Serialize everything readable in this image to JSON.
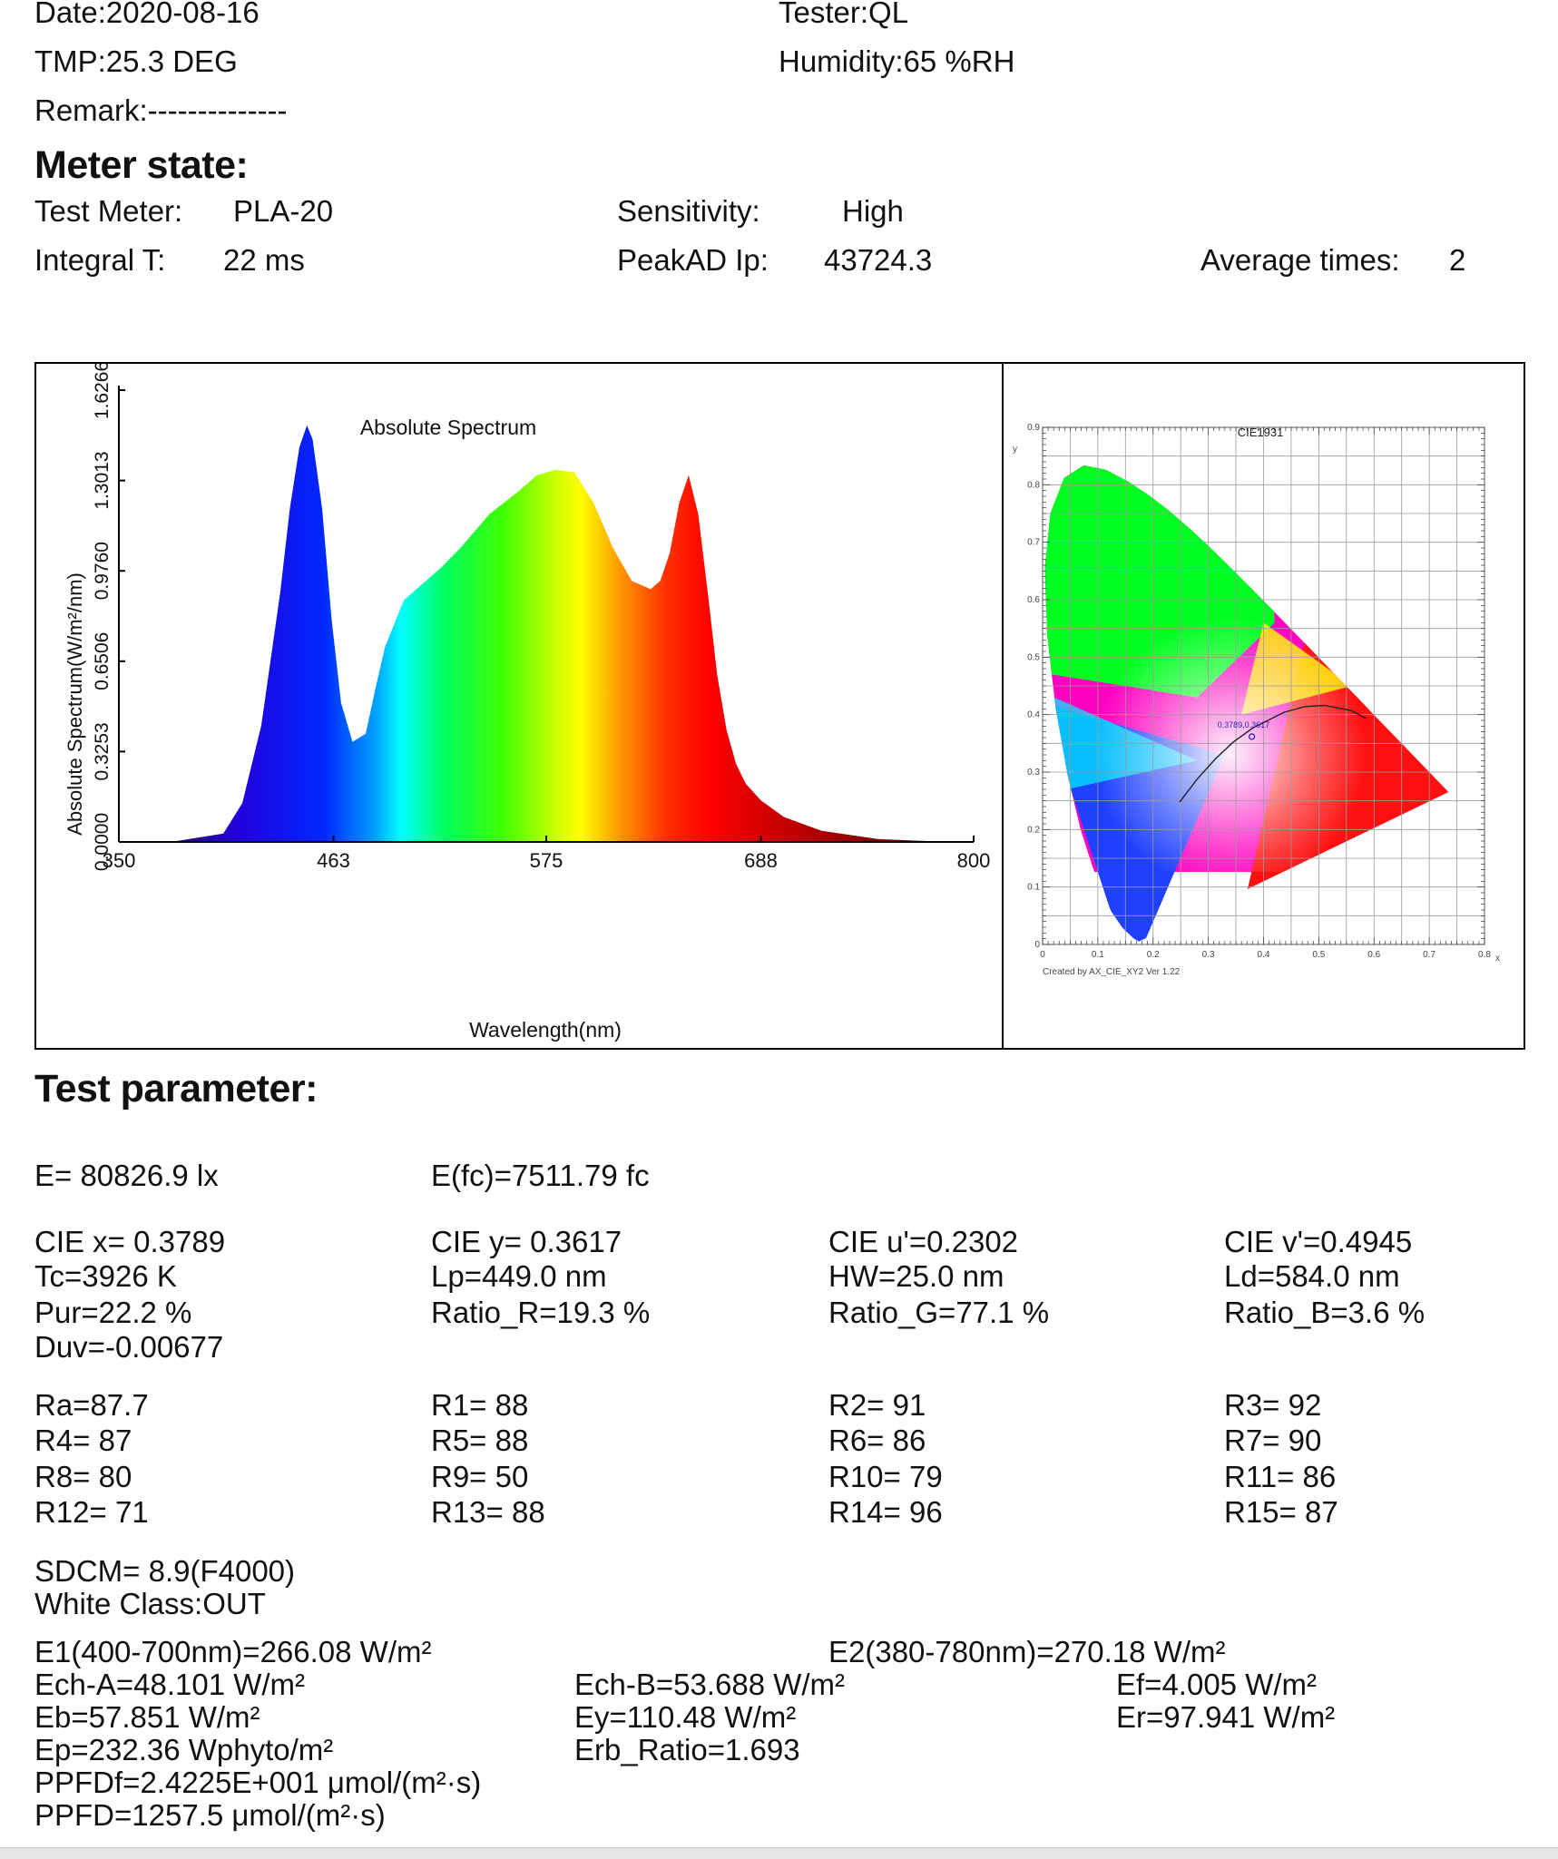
{
  "header": {
    "date": "Date:2020-08-16",
    "tester": "Tester:QL",
    "tmp": "TMP:25.3 DEG",
    "humidity": "Humidity:65 %RH",
    "remark": "Remark:--------------"
  },
  "meter": {
    "heading": "Meter state:",
    "test_meter_label": "Test Meter:",
    "test_meter_value": "PLA-20",
    "sensitivity_label": "Sensitivity:",
    "sensitivity_value": "High",
    "integral_label": "Integral T:",
    "integral_value": "22 ms",
    "peakad_label": "PeakAD Ip:",
    "peakad_value": "43724.3",
    "avg_label": "Average times:",
    "avg_value": "2"
  },
  "spectrum": {
    "title": "Absolute Spectrum",
    "xlabel": "Wavelength(nm)",
    "ylabel": "Absolute Spectrum(W/m²/nm)",
    "x_ticks": [
      "350",
      "463",
      "575",
      "688",
      "800"
    ],
    "y_ticks": [
      "0.0000",
      "0.3253",
      "0.6506",
      "0.9760",
      "1.3013",
      "1.6266"
    ]
  },
  "cie": {
    "title": "CIE1931",
    "axis_y": "y",
    "axis_x": "x",
    "y_ticks": [
      "0",
      "0.1",
      "0.2",
      "0.3",
      "0.4",
      "0.5",
      "0.6",
      "0.7",
      "0.8",
      "0.9"
    ],
    "x_ticks": [
      "0",
      "0.1",
      "0.2",
      "0.3",
      "0.4",
      "0.5",
      "0.6",
      "0.7",
      "0.8"
    ],
    "point_label": "0.3789,0.3617",
    "credit": "Created by AX_CIE_XY2 Ver 1.22"
  },
  "chart_data": [
    {
      "type": "area",
      "title": "Absolute Spectrum",
      "xlabel": "Wavelength(nm)",
      "ylabel": "Absolute Spectrum(W/m²/nm)",
      "xlim": [
        350,
        800
      ],
      "ylim": [
        0,
        1.6266
      ],
      "x": [
        350,
        380,
        405,
        415,
        425,
        435,
        440,
        445,
        449,
        452,
        457,
        462,
        467,
        473,
        480,
        485,
        490,
        500,
        510,
        520,
        530,
        545,
        560,
        570,
        580,
        590,
        600,
        610,
        620,
        630,
        635,
        640,
        645,
        650,
        655,
        660,
        665,
        670,
        675,
        680,
        688,
        700,
        720,
        750,
        780,
        800
      ],
      "y": [
        0.0,
        0.003,
        0.03,
        0.14,
        0.42,
        0.9,
        1.2,
        1.42,
        1.5,
        1.45,
        1.2,
        0.8,
        0.5,
        0.36,
        0.39,
        0.55,
        0.7,
        0.87,
        0.93,
        0.99,
        1.06,
        1.18,
        1.26,
        1.32,
        1.34,
        1.33,
        1.22,
        1.06,
        0.94,
        0.91,
        0.94,
        1.04,
        1.22,
        1.32,
        1.18,
        0.9,
        0.6,
        0.4,
        0.28,
        0.21,
        0.15,
        0.09,
        0.04,
        0.01,
        0.002,
        0.0
      ]
    },
    {
      "type": "scatter",
      "title": "CIE1931",
      "xlabel": "x",
      "ylabel": "y",
      "xlim": [
        0,
        0.8
      ],
      "ylim": [
        0,
        0.9
      ],
      "series": [
        {
          "values": [
            [
              0.3789,
              0.3617
            ]
          ]
        }
      ]
    }
  ],
  "params": {
    "heading": "Test parameter:",
    "e_lux": "E=  80826.9 lx",
    "e_fc": "E(fc)=7511.79 fc",
    "cie_x": "CIE x= 0.3789",
    "cie_y": "CIE y= 0.3617",
    "cie_u": "CIE u'=0.2302",
    "cie_v": "CIE v'=0.4945",
    "tc": "Tc=3926 K",
    "lp": "Lp=449.0 nm",
    "hw": "HW=25.0 nm",
    "ld": "Ld=584.0 nm",
    "pur": "Pur=22.2 %",
    "ratio_r": "Ratio_R=19.3 %",
    "ratio_g": "Ratio_G=77.1 %",
    "ratio_b": "Ratio_B=3.6 %",
    "duv": "Duv=-0.00677",
    "ra": "Ra=87.7",
    "r1": "R1= 88",
    "r2": "R2= 91",
    "r3": "R3= 92",
    "r4": "R4= 87",
    "r5": "R5= 88",
    "r6": "R6= 86",
    "r7": "R7= 90",
    "r8": "R8= 80",
    "r9": "R9= 50",
    "r10": "R10= 79",
    "r11": "R11= 86",
    "r12": "R12= 71",
    "r13": "R13= 88",
    "r14": "R14= 96",
    "r15": "R15= 87",
    "sdcm": "SDCM= 8.9(F4000)",
    "white_class": "White Class:OUT",
    "e1": "E1(400-700nm)=266.08 W/m²",
    "e2": "E2(380-780nm)=270.18 W/m²",
    "ech_a": "Ech-A=48.101 W/m²",
    "ech_b": "Ech-B=53.688 W/m²",
    "ef": "Ef=4.005 W/m²",
    "eb": "Eb=57.851 W/m²",
    "ey": "Ey=110.48 W/m²",
    "er": "Er=97.941 W/m²",
    "ep": "Ep=232.36 Wphyto/m²",
    "erb": "Erb_Ratio=1.693",
    "ppfdf": "PPFDf=2.4225E+001 μmol/(m²·s)",
    "ppfd": "PPFD=1257.5 μmol/(m²·s)"
  }
}
